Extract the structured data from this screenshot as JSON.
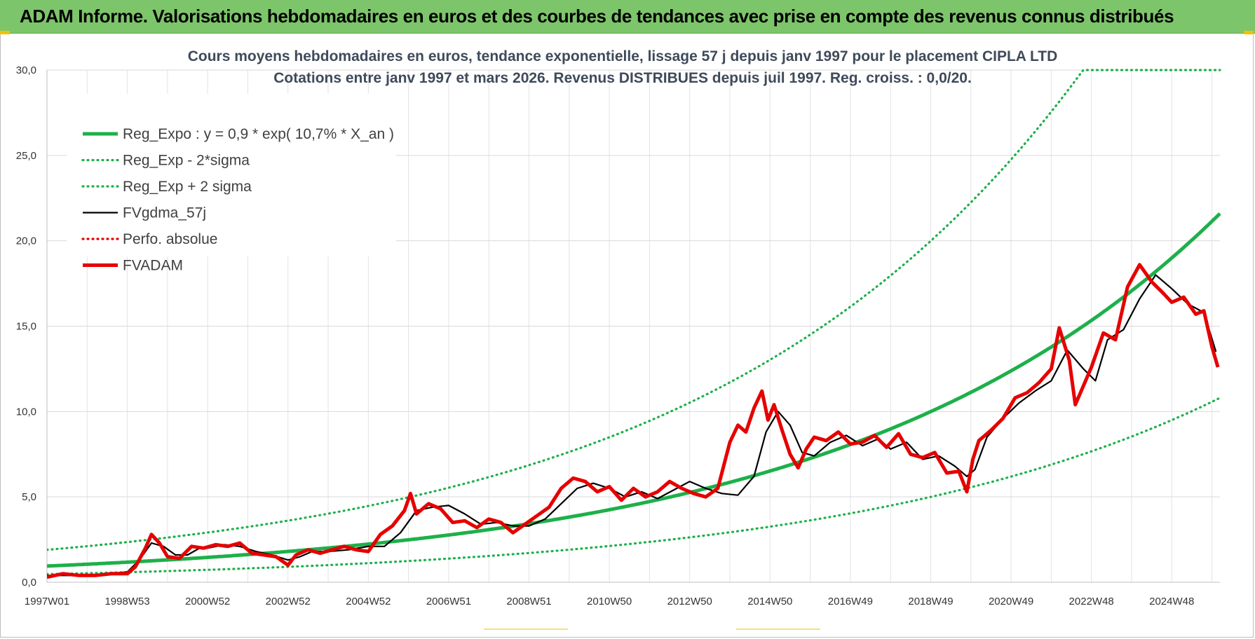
{
  "header": {
    "title": "ADAM Informe. Valorisations hebdomadaires en euros et des courbes de tendances avec prise en compte des revenus connus distribués"
  },
  "chart_data": {
    "type": "line",
    "title": "Cours moyens hebdomadaires en euros, tendance exponentielle, lissage 57 j depuis janv 1997 pour le placement CIPLA LTD",
    "subtitle": "Cotations entre janv 1997 et mars 2026. Revenus DISTRIBUES depuis juil 1997. Reg. croiss. : 0,0/20.",
    "xlabel": "",
    "ylabel": "",
    "ylim": [
      0,
      30
    ],
    "xlim": [
      1997.0,
      2026.2
    ],
    "y_ticks": [
      "0,0",
      "5,0",
      "10,0",
      "15,0",
      "20,0",
      "25,0",
      "30,0"
    ],
    "x_ticks": [
      "1997W01",
      "1998W53",
      "2000W52",
      "2002W52",
      "2004W52",
      "2006W51",
      "2008W51",
      "2010W50",
      "2012W50",
      "2014W50",
      "2016W49",
      "2018W49",
      "2020W49",
      "2022W48",
      "2024W48"
    ],
    "x_tick_years": [
      1997.0,
      1999.0,
      2001.0,
      2003.0,
      2005.0,
      2007.0,
      2009.0,
      2011.0,
      2013.0,
      2015.0,
      2017.0,
      2019.0,
      2021.0,
      2023.0,
      2025.0
    ],
    "series": [
      {
        "name": "Reg_Expo : y = 0,9 * exp( 10,7% *  X_an )",
        "color": "#1db04a",
        "style": "solid-thick",
        "formula": {
          "a": 0.9,
          "r": 0.107,
          "factor": 1.0,
          "x0": 1997.0
        }
      },
      {
        "name": "Reg_Exp - 2*sigma",
        "color": "#1db04a",
        "style": "dotted",
        "formula": {
          "a": 0.9,
          "r": 0.107,
          "factor": 0.5,
          "x0": 1997.0
        }
      },
      {
        "name": "Reg_Exp + 2 sigma",
        "color": "#1db04a",
        "style": "dotted",
        "formula": {
          "a": 0.9,
          "r": 0.107,
          "factor": 2.0,
          "x0": 1997.0
        }
      },
      {
        "name": "FVgdma_57j",
        "color": "#000000",
        "style": "solid",
        "x": [
          1997.0,
          1997.5,
          1998.0,
          1998.5,
          1999.0,
          1999.3,
          1999.6,
          1999.9,
          2000.2,
          2000.5,
          2000.8,
          2001.0,
          2001.4,
          2001.8,
          2002.2,
          2002.6,
          2003.0,
          2003.3,
          2003.6,
          2004.0,
          2004.5,
          2005.0,
          2005.4,
          2005.8,
          2006.2,
          2006.6,
          2007.0,
          2007.4,
          2007.8,
          2008.2,
          2008.6,
          2009.0,
          2009.4,
          2009.8,
          2010.2,
          2010.6,
          2011.0,
          2011.4,
          2011.8,
          2012.2,
          2012.6,
          2013.0,
          2013.4,
          2013.8,
          2014.2,
          2014.6,
          2014.9,
          2015.2,
          2015.5,
          2015.8,
          2016.1,
          2016.5,
          2016.9,
          2017.3,
          2017.7,
          2018.0,
          2018.4,
          2018.8,
          2019.2,
          2019.6,
          2019.9,
          2020.1,
          2020.4,
          2020.8,
          2021.2,
          2021.6,
          2022.0,
          2022.4,
          2022.8,
          2023.1,
          2023.4,
          2023.8,
          2024.2,
          2024.6,
          2025.0,
          2025.4,
          2025.8,
          2026.1
        ],
        "y": [
          0.4,
          0.4,
          0.4,
          0.5,
          0.6,
          1.3,
          2.3,
          2.1,
          1.6,
          1.6,
          2.0,
          2.0,
          2.2,
          2.1,
          1.8,
          1.6,
          1.3,
          1.5,
          1.8,
          1.8,
          1.9,
          2.1,
          2.1,
          2.9,
          4.2,
          4.4,
          4.5,
          4.0,
          3.4,
          3.5,
          3.3,
          3.3,
          3.7,
          4.6,
          5.5,
          5.8,
          5.5,
          5.0,
          5.3,
          4.9,
          5.4,
          5.9,
          5.5,
          5.2,
          5.1,
          6.2,
          8.8,
          10.0,
          9.2,
          7.6,
          7.4,
          8.2,
          8.6,
          8.0,
          8.4,
          7.8,
          8.2,
          7.2,
          7.4,
          6.8,
          6.2,
          6.6,
          8.5,
          9.6,
          10.5,
          11.2,
          11.8,
          13.6,
          12.5,
          11.8,
          14.2,
          14.8,
          16.6,
          18.0,
          17.2,
          16.3,
          15.8,
          13.5
        ]
      },
      {
        "name": "Perfo. absolue",
        "color": "#e60000",
        "style": "dotted",
        "x": [],
        "y": []
      },
      {
        "name": "FVADAM",
        "color": "#e60000",
        "style": "solid-thick",
        "x": [
          1997.0,
          1997.4,
          1997.8,
          1998.2,
          1998.6,
          1999.0,
          1999.2,
          1999.45,
          1999.6,
          1999.8,
          2000.0,
          2000.3,
          2000.6,
          2000.9,
          2001.2,
          2001.5,
          2001.8,
          2002.1,
          2002.4,
          2002.7,
          2003.0,
          2003.2,
          2003.5,
          2003.8,
          2004.1,
          2004.4,
          2004.7,
          2005.0,
          2005.3,
          2005.6,
          2005.9,
          2006.05,
          2006.2,
          2006.5,
          2006.8,
          2007.1,
          2007.4,
          2007.7,
          2008.0,
          2008.3,
          2008.6,
          2008.9,
          2009.2,
          2009.5,
          2009.8,
          2010.1,
          2010.4,
          2010.7,
          2011.0,
          2011.3,
          2011.6,
          2011.9,
          2012.2,
          2012.5,
          2012.8,
          2013.1,
          2013.4,
          2013.7,
          2014.0,
          2014.2,
          2014.4,
          2014.6,
          2014.8,
          2014.95,
          2015.1,
          2015.3,
          2015.5,
          2015.7,
          2015.9,
          2016.1,
          2016.4,
          2016.7,
          2017.0,
          2017.3,
          2017.6,
          2017.9,
          2018.2,
          2018.5,
          2018.8,
          2019.1,
          2019.4,
          2019.7,
          2019.9,
          2020.05,
          2020.2,
          2020.5,
          2020.8,
          2021.1,
          2021.4,
          2021.7,
          2022.0,
          2022.2,
          2022.45,
          2022.6,
          2022.8,
          2023.0,
          2023.3,
          2023.6,
          2023.9,
          2024.2,
          2024.5,
          2024.8,
          2025.0,
          2025.3,
          2025.6,
          2025.8,
          2026.0,
          2026.15
        ],
        "y": [
          0.3,
          0.5,
          0.4,
          0.4,
          0.5,
          0.5,
          0.9,
          2.0,
          2.8,
          2.3,
          1.5,
          1.4,
          2.1,
          2.0,
          2.2,
          2.1,
          2.3,
          1.7,
          1.6,
          1.5,
          1.0,
          1.6,
          1.9,
          1.7,
          1.9,
          2.1,
          1.9,
          1.8,
          2.8,
          3.3,
          4.2,
          5.2,
          4.0,
          4.6,
          4.3,
          3.5,
          3.6,
          3.2,
          3.7,
          3.5,
          2.9,
          3.4,
          3.9,
          4.4,
          5.5,
          6.1,
          5.9,
          5.3,
          5.6,
          4.8,
          5.5,
          5.0,
          5.3,
          5.9,
          5.5,
          5.2,
          5.0,
          5.5,
          8.2,
          9.2,
          8.8,
          10.2,
          11.2,
          9.5,
          10.4,
          8.9,
          7.5,
          6.7,
          7.8,
          8.5,
          8.3,
          8.8,
          8.1,
          8.2,
          8.6,
          7.9,
          8.7,
          7.5,
          7.3,
          7.6,
          6.4,
          6.5,
          5.3,
          7.2,
          8.3,
          8.9,
          9.6,
          10.8,
          11.1,
          11.7,
          12.5,
          14.9,
          13.0,
          10.4,
          11.5,
          12.6,
          14.6,
          14.2,
          17.3,
          18.6,
          17.6,
          16.9,
          16.4,
          16.7,
          15.7,
          15.9,
          13.8,
          12.6
        ]
      }
    ]
  }
}
